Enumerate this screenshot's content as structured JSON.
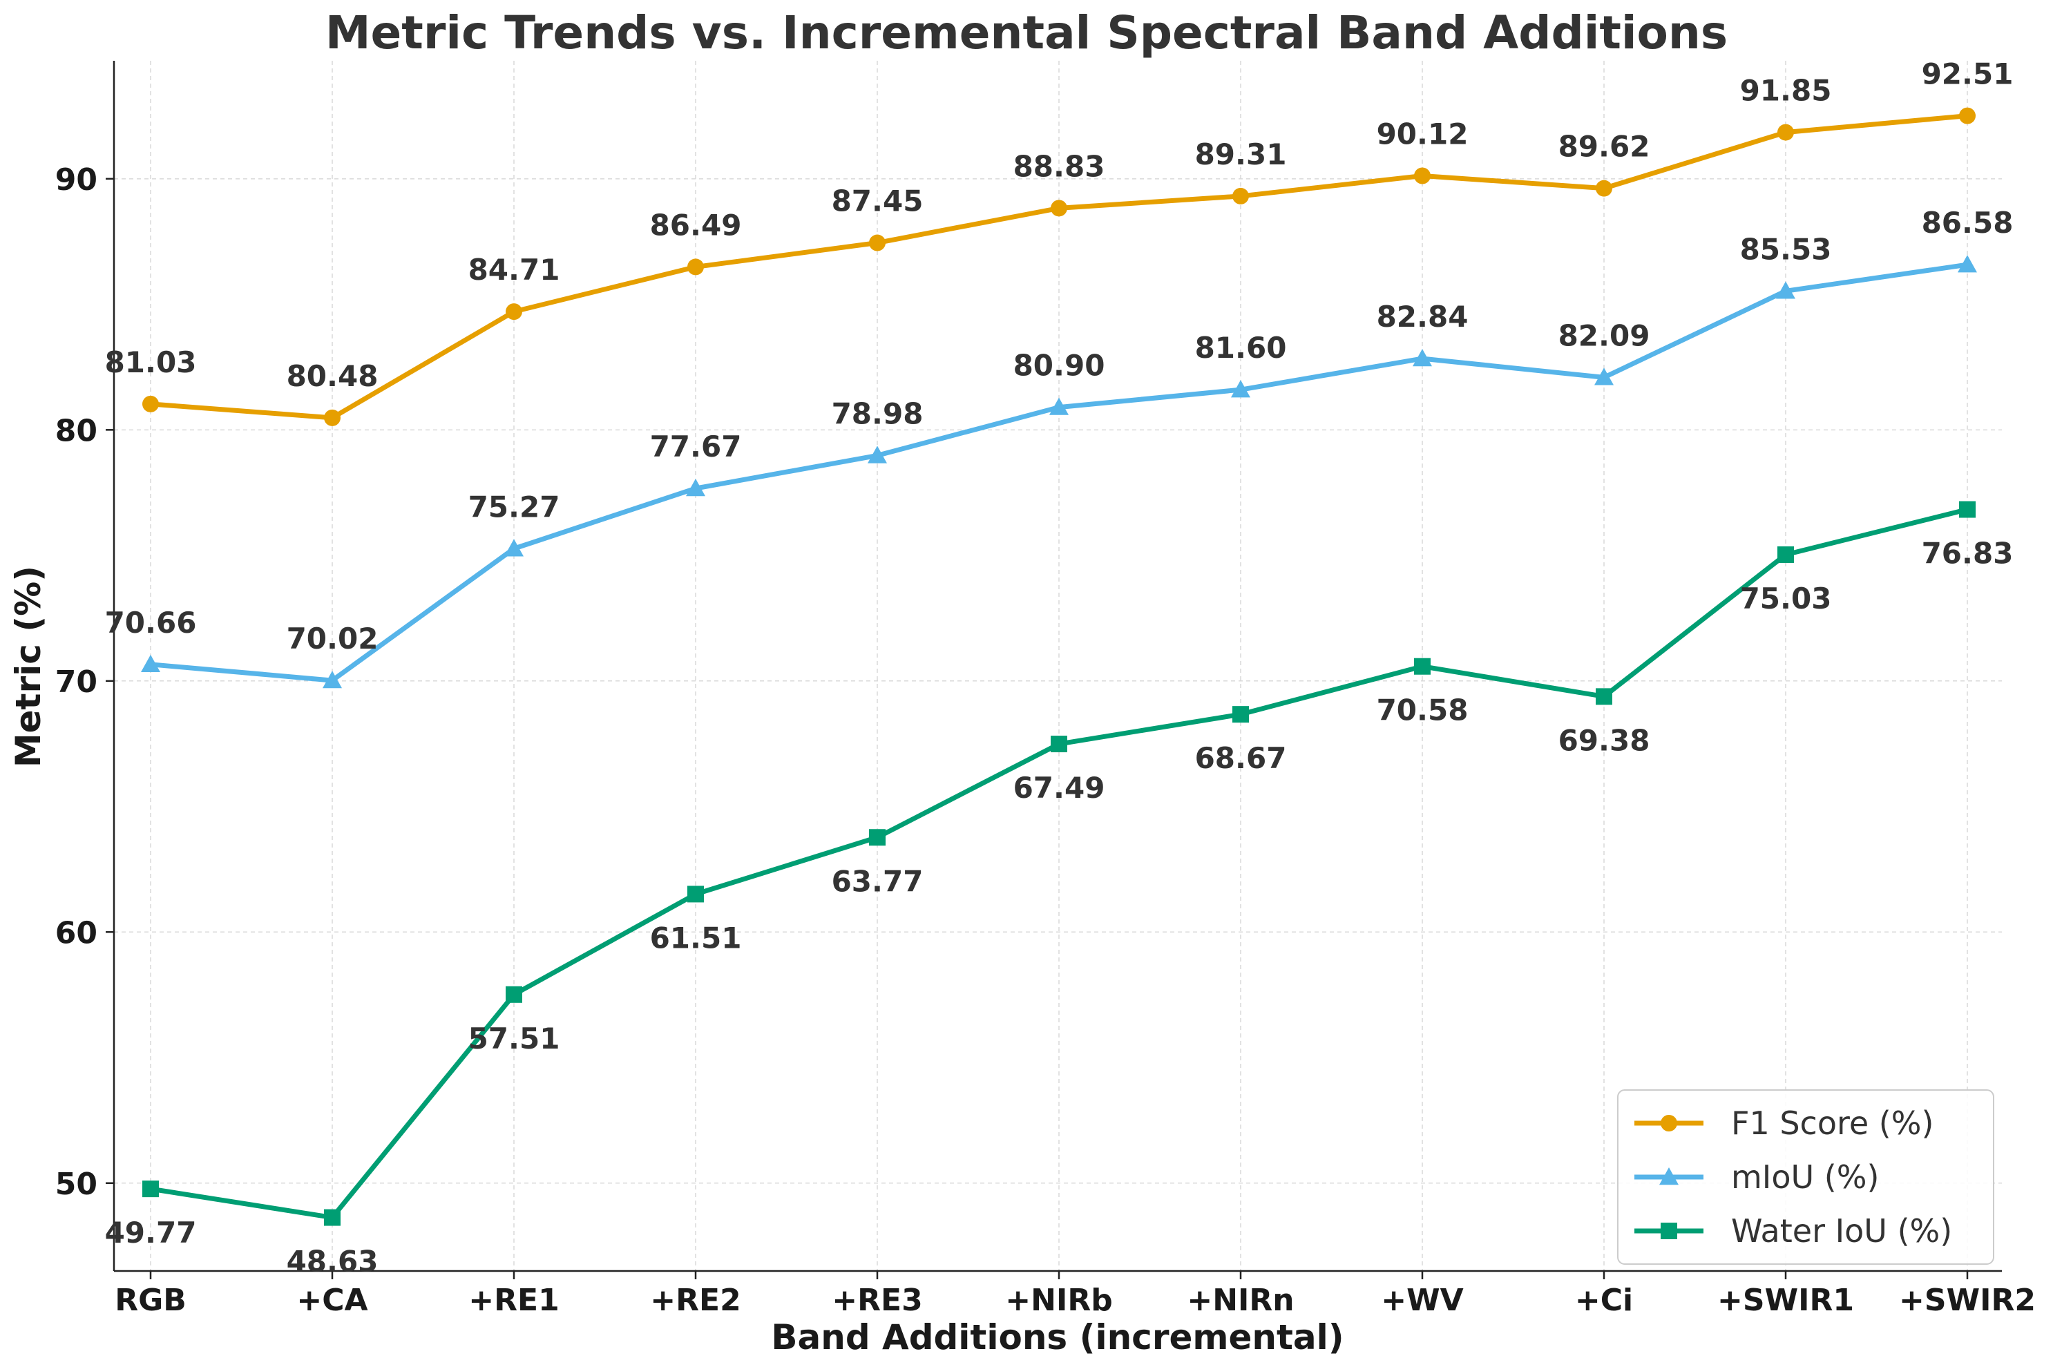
{
  "chart_data": {
    "type": "line",
    "title": "Metric Trends vs. Incremental Spectral Band Additions",
    "xlabel": "Band Additions (incremental)",
    "ylabel": "Metric (%)",
    "categories": [
      "RGB",
      "+CA",
      "+RE1",
      "+RE2",
      "+RE3",
      "+NIRb",
      "+NIRn",
      "+WV",
      "+Ci",
      "+SWIR1",
      "+SWIR2"
    ],
    "ylim": [
      46.5,
      94.7
    ],
    "yticks": [
      50,
      60,
      70,
      80,
      90
    ],
    "grid": true,
    "legend_position": "bottom-right",
    "series": [
      {
        "name": "F1 Score (%)",
        "color": "#E69F00",
        "marker": "circle",
        "label_position": "above",
        "values": [
          81.03,
          80.48,
          84.71,
          86.49,
          87.45,
          88.83,
          89.31,
          90.12,
          89.62,
          91.85,
          92.51
        ],
        "labels": [
          "81.03",
          "80.48",
          "84.71",
          "86.49",
          "87.45",
          "88.83",
          "89.31",
          "90.12",
          "89.62",
          "91.85",
          "92.51"
        ]
      },
      {
        "name": "mIoU (%)",
        "color": "#56B4E9",
        "marker": "triangle",
        "label_position": "above",
        "values": [
          70.66,
          70.02,
          75.27,
          77.67,
          78.98,
          80.9,
          81.6,
          82.84,
          82.09,
          85.53,
          86.58
        ],
        "labels": [
          "70.66",
          "70.02",
          "75.27",
          "77.67",
          "78.98",
          "80.90",
          "81.60",
          "82.84",
          "82.09",
          "85.53",
          "86.58"
        ]
      },
      {
        "name": "Water IoU (%)",
        "color": "#009E73",
        "marker": "square",
        "label_position": "below",
        "values": [
          49.77,
          48.63,
          57.51,
          61.51,
          63.77,
          67.49,
          68.67,
          70.58,
          69.38,
          75.03,
          76.83
        ],
        "labels": [
          "49.77",
          "48.63",
          "57.51",
          "61.51",
          "63.77",
          "67.49",
          "68.67",
          "70.58",
          "69.38",
          "75.03",
          "76.83"
        ]
      }
    ]
  }
}
